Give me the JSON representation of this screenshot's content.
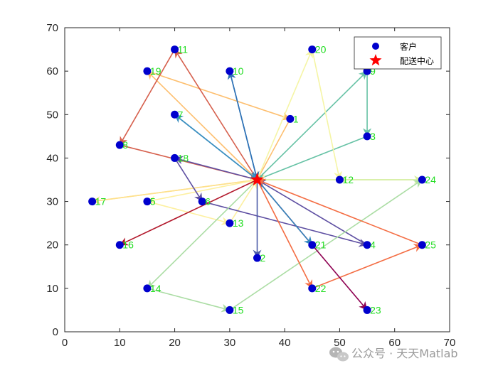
{
  "chart_data": {
    "type": "scatter",
    "xlim": [
      0,
      70
    ],
    "ylim": [
      0,
      70
    ],
    "xticks": [
      0,
      10,
      20,
      30,
      40,
      50,
      60,
      70
    ],
    "yticks": [
      0,
      10,
      20,
      30,
      40,
      50,
      60,
      70
    ],
    "grid": false,
    "legend": {
      "placement": "top-right",
      "entries": [
        {
          "label": "客户",
          "marker": "circle",
          "color": "#0000cd"
        },
        {
          "label": "配送中心",
          "marker": "star",
          "color": "#ff0000"
        }
      ]
    },
    "depot": {
      "x": 35,
      "y": 35
    },
    "customers": [
      {
        "id": "1",
        "x": 41,
        "y": 49
      },
      {
        "id": "2",
        "x": 35,
        "y": 17
      },
      {
        "id": "3",
        "x": 55,
        "y": 45
      },
      {
        "id": "4",
        "x": 55,
        "y": 20
      },
      {
        "id": "5",
        "x": 15,
        "y": 30
      },
      {
        "id": "6",
        "x": 25,
        "y": 30
      },
      {
        "id": "7",
        "x": 20,
        "y": 50
      },
      {
        "id": "8",
        "x": 10,
        "y": 43
      },
      {
        "id": "9",
        "x": 55,
        "y": 60
      },
      {
        "id": "10",
        "x": 30,
        "y": 60
      },
      {
        "id": "11",
        "x": 20,
        "y": 65
      },
      {
        "id": "12",
        "x": 50,
        "y": 35
      },
      {
        "id": "13",
        "x": 30,
        "y": 25
      },
      {
        "id": "14",
        "x": 15,
        "y": 10
      },
      {
        "id": "15",
        "x": 30,
        "y": 5
      },
      {
        "id": "16",
        "x": 10,
        "y": 20
      },
      {
        "id": "17",
        "x": 5,
        "y": 30
      },
      {
        "id": "18",
        "x": 20,
        "y": 40
      },
      {
        "id": "19",
        "x": 15,
        "y": 60
      },
      {
        "id": "20",
        "x": 45,
        "y": 65
      },
      {
        "id": "21",
        "x": 45,
        "y": 20
      },
      {
        "id": "22",
        "x": 45,
        "y": 10
      },
      {
        "id": "23",
        "x": 55,
        "y": 5
      },
      {
        "id": "24",
        "x": 65,
        "y": 35
      },
      {
        "id": "25",
        "x": 65,
        "y": 20
      }
    ],
    "routes": [
      {
        "color": "#fdbf6f",
        "path": [
          "depot",
          "19",
          "1",
          "depot"
        ]
      },
      {
        "color": "#d6604d",
        "path": [
          "depot",
          "11",
          "8",
          "depot"
        ]
      },
      {
        "color": "#2e72b6",
        "path": [
          "depot",
          "10",
          "depot"
        ]
      },
      {
        "color": "#3b8fc0",
        "path": [
          "depot",
          "7",
          "depot"
        ]
      },
      {
        "color": "#66c2a5",
        "path": [
          "depot",
          "9",
          "3",
          "depot"
        ]
      },
      {
        "color": "#f5f5a5",
        "path": [
          "depot",
          "20",
          "12",
          "depot"
        ]
      },
      {
        "color": "#d4ee9e",
        "path": [
          "depot",
          "24",
          "12"
        ]
      },
      {
        "color": "#fee08b",
        "path": [
          "depot",
          "17",
          "depot"
        ]
      },
      {
        "color": "#fdf0a0",
        "path": [
          "depot",
          "5",
          "13",
          "depot"
        ]
      },
      {
        "color": "#5e4fa2",
        "path": [
          "depot",
          "18",
          "6",
          "4",
          "depot"
        ]
      },
      {
        "color": "#4b5ba8",
        "path": [
          "depot",
          "2"
        ]
      },
      {
        "color": "#b2182b",
        "path": [
          "depot",
          "16"
        ]
      },
      {
        "color": "#abdda4",
        "path": [
          "depot",
          "14",
          "15",
          "24"
        ]
      },
      {
        "color": "#f46d43",
        "path": [
          "depot",
          "22",
          "25",
          "depot"
        ]
      },
      {
        "color": "#8e0152",
        "path": [
          "depot",
          "23"
        ]
      },
      {
        "color": "#3288bd",
        "path": [
          "depot",
          "21"
        ]
      }
    ]
  },
  "watermark": {
    "text": "公众号 · 天天Matlab"
  },
  "colors": {
    "customer": "#0000cd",
    "depot": "#ff0000",
    "label": "#22dd22",
    "axis": "#262626"
  }
}
